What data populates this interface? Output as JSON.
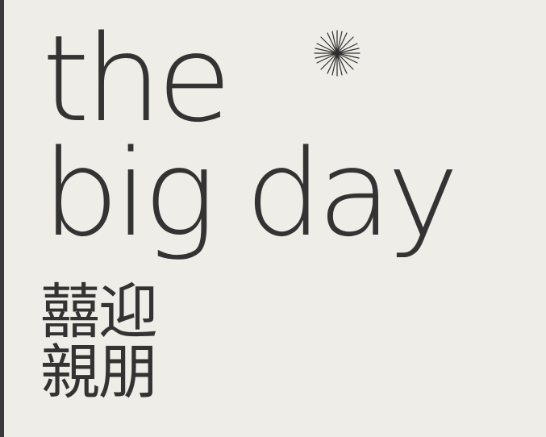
{
  "title": {
    "line1": "the",
    "line2": "big day"
  },
  "subtitle_cjk": {
    "line1": "囍迎",
    "line2": "親朋"
  },
  "decoration": {
    "icon": "starburst-icon"
  },
  "colors": {
    "background": "#efede7",
    "text": "#333333",
    "left_edge": "#3a3a3a"
  }
}
